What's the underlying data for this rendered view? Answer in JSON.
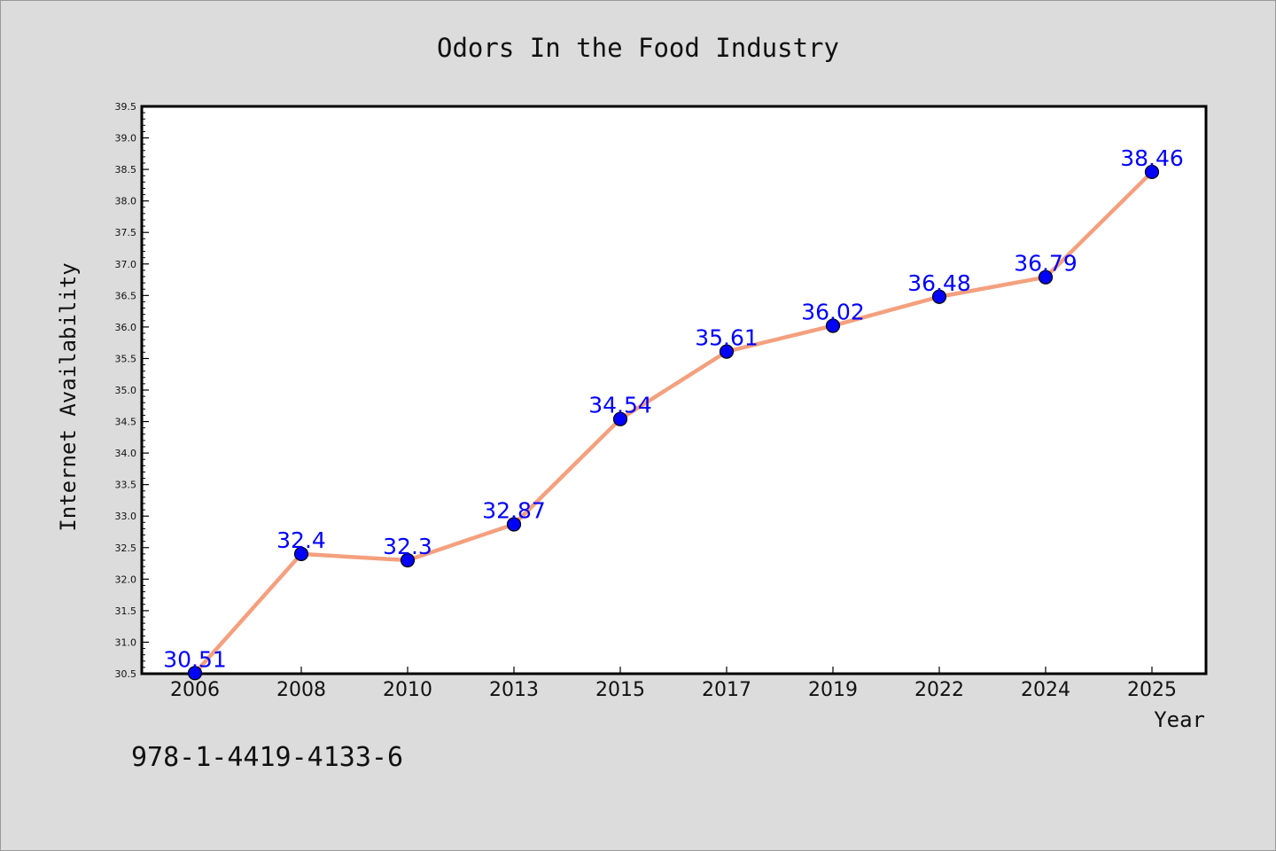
{
  "footer_text": "978-1-4419-4133-6",
  "colors": {
    "background": "#dcdcdc",
    "plot_background": "#ffffff",
    "line": "#f4a07e",
    "marker": "#0000ff",
    "label": "#0000ff"
  },
  "chart_data": {
    "type": "line",
    "title": "Odors In the Food Industry",
    "xlabel": "Year",
    "ylabel": "Internet Availability",
    "categories": [
      "2006",
      "2008",
      "2010",
      "2013",
      "2015",
      "2017",
      "2019",
      "2022",
      "2024",
      "2025"
    ],
    "series": [
      {
        "values": [
          30.51,
          32.4,
          32.3,
          32.87,
          34.54,
          35.61,
          36.02,
          36.48,
          36.79,
          38.46
        ],
        "labels": [
          "30.51",
          "32.4",
          "32.3",
          "32.87",
          "34.54",
          "35.61",
          "36.02",
          "36.48",
          "36.79",
          "38.46"
        ]
      }
    ],
    "ylim": [
      30.5,
      39.5
    ],
    "yticks": [
      "30.5",
      "31.0",
      "31.5",
      "32.0",
      "32.5",
      "33.0",
      "33.5",
      "34.0",
      "34.5",
      "35.0",
      "35.5",
      "36.0",
      "36.5",
      "37.0",
      "37.5",
      "38.0",
      "38.5",
      "39.0",
      "39.5"
    ],
    "grid": false,
    "legend": "none"
  }
}
